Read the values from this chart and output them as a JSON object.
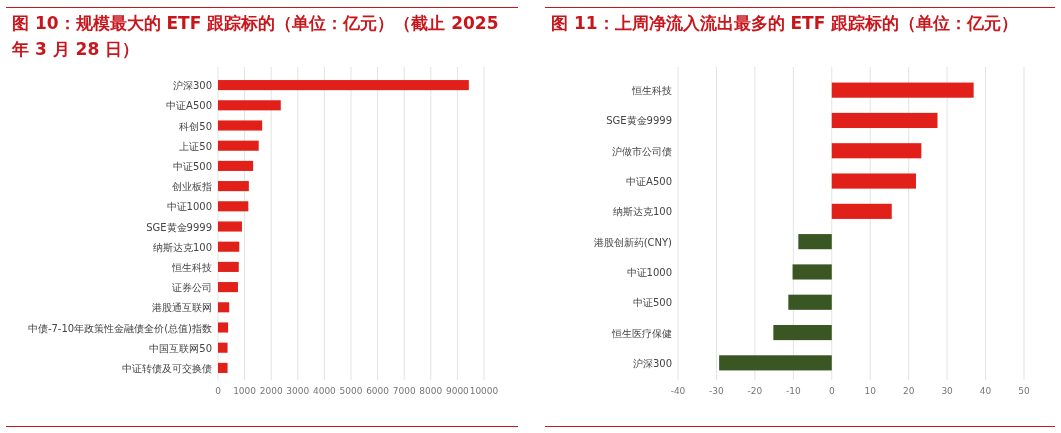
{
  "chart_data": [
    {
      "type": "bar",
      "orientation": "horizontal",
      "title": "图 10：规模最大的 ETF 跟踪标的（单位：亿元）（截止 2025 年 3 月 28 日）",
      "categories": [
        "沪深300",
        "中证A500",
        "科创50",
        "上证50",
        "中证500",
        "创业板指",
        "中证1000",
        "SGE黄金9999",
        "纳斯达克100",
        "恒生科技",
        "证券公司",
        "港股通互联网",
        "中债-7-10年政策性金融债全价(总值)指数",
        "中国互联网50",
        "中证转债及可交换债"
      ],
      "values": [
        9430,
        2360,
        1660,
        1530,
        1320,
        1160,
        1140,
        900,
        800,
        780,
        750,
        420,
        380,
        360,
        360
      ],
      "color": "#e02019",
      "xlim": [
        0,
        10000
      ],
      "xticks": [
        0,
        1000,
        2000,
        3000,
        4000,
        5000,
        6000,
        7000,
        8000,
        9000,
        10000
      ],
      "grid": "x"
    },
    {
      "type": "bar",
      "orientation": "horizontal",
      "title": "图 11：上周净流入流出最多的 ETF 跟踪标的（单位：亿元）",
      "categories": [
        "恒生科技",
        "SGE黄金9999",
        "沪做市公司债",
        "中证A500",
        "纳斯达克100",
        "港股创新药(CNY)",
        "中证1000",
        "中证500",
        "恒生医疗保健",
        "沪深300"
      ],
      "values": [
        36.9,
        27.5,
        23.3,
        21.9,
        15.6,
        -8.7,
        -10.2,
        -11.3,
        -15.2,
        -29.3
      ],
      "colors": [
        "#e02019",
        "#e02019",
        "#e02019",
        "#e02019",
        "#e02019",
        "#3a5623",
        "#3a5623",
        "#3a5623",
        "#3a5623",
        "#3a5623"
      ],
      "xlim": [
        -40,
        50
      ],
      "xticks": [
        -40,
        -30,
        -20,
        -10,
        0,
        10,
        20,
        30,
        40,
        50
      ],
      "grid": "x"
    }
  ]
}
